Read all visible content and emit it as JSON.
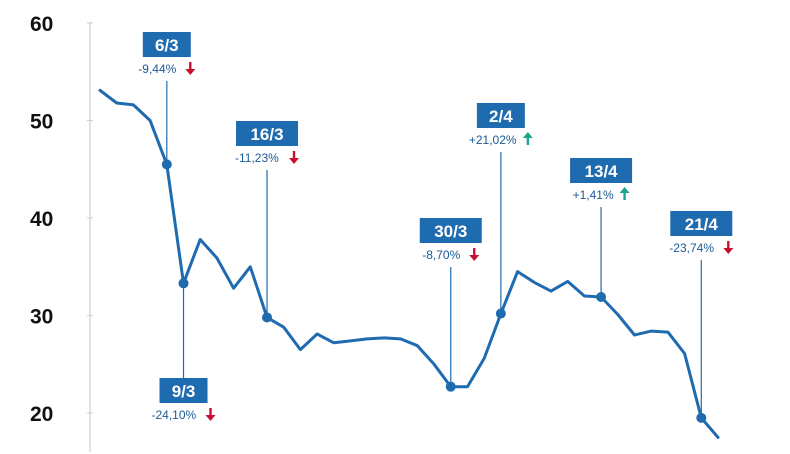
{
  "chart_data": {
    "type": "line",
    "title": "",
    "xlabel": "",
    "ylabel": "",
    "ylim": [
      17,
      62
    ],
    "yticks": [
      20,
      30,
      40,
      50,
      60
    ],
    "grid": false,
    "x_index_range": [
      0,
      39
    ],
    "series": [
      {
        "values": [
          53.1,
          51.8,
          51.6,
          50.0,
          45.5,
          33.3,
          37.8,
          35.9,
          32.8,
          35.0,
          29.8,
          28.8,
          26.5,
          28.1,
          27.2,
          27.4,
          27.6,
          27.7,
          27.6,
          26.9,
          25.0,
          22.7,
          22.7,
          25.6,
          30.2,
          34.5,
          33.4,
          32.5,
          33.5,
          32.0,
          31.9,
          30.1,
          28.0,
          28.4,
          28.3,
          26.1,
          19.5,
          17.5
        ]
      }
    ],
    "annotations": [
      {
        "date": "6/3",
        "pct": "-9,44%",
        "dir": "down",
        "index": 4,
        "value": 45.5,
        "label_pos": "above"
      },
      {
        "date": "9/3",
        "pct": "-24,10%",
        "dir": "down",
        "index": 5,
        "value": 33.3,
        "label_pos": "below"
      },
      {
        "date": "16/3",
        "pct": "-11,23%",
        "dir": "down",
        "index": 10,
        "value": 29.8,
        "label_pos": "above"
      },
      {
        "date": "30/3",
        "pct": "-8,70%",
        "dir": "down",
        "index": 21,
        "value": 22.7,
        "label_pos": "above"
      },
      {
        "date": "2/4",
        "pct": "+21,02%",
        "dir": "up",
        "index": 24,
        "value": 30.2,
        "label_pos": "above"
      },
      {
        "date": "13/4",
        "pct": "+1,41%",
        "dir": "up",
        "index": 30,
        "value": 31.9,
        "label_pos": "above"
      },
      {
        "date": "21/4",
        "pct": "-23,74%",
        "dir": "down",
        "index": 36,
        "value": 19.5,
        "label_pos": "above"
      }
    ],
    "colors": {
      "line": "#1f6bb0",
      "label_box": "#1f6bb0",
      "pct_text": "#1a5a96",
      "down_arrow": "#c8102e",
      "up_arrow": "#1aa58c",
      "axis": "#222222"
    }
  }
}
